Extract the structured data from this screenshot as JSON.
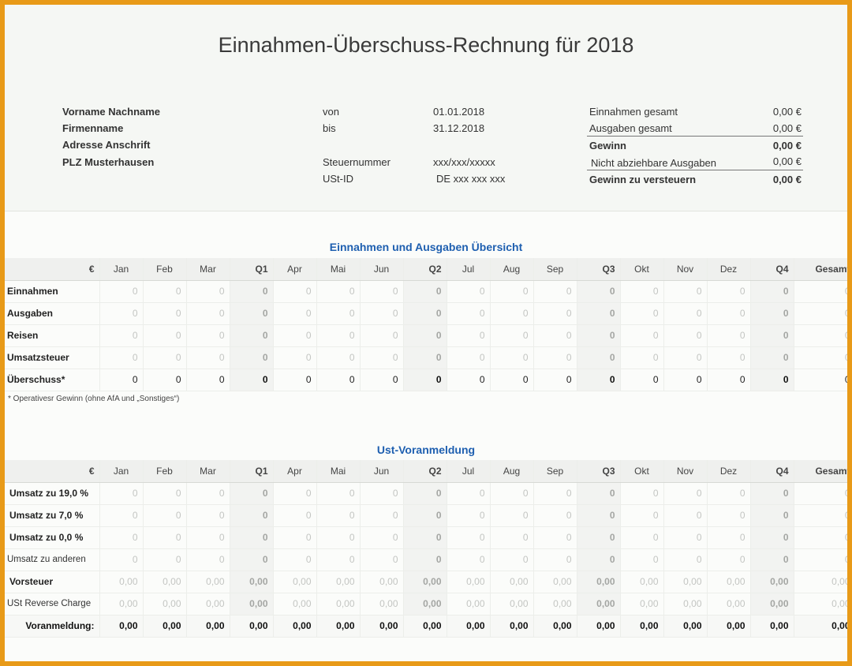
{
  "title": "Einnahmen-Überschuss-Rechnung für 2018",
  "person": {
    "name": "Vorname Nachname",
    "company": "Firmenname",
    "address": "Adresse Anschrift",
    "city": "PLZ Musterhausen"
  },
  "period": {
    "from_label": "von",
    "from_value": "01.01.2018",
    "to_label": "bis",
    "to_value": "31.12.2018",
    "tax_label": "Steuernummer",
    "tax_value": "xxx/xxx/xxxxx",
    "vat_label": "USt-ID",
    "vat_value": "DE xxx xxx xxx"
  },
  "summary": [
    {
      "label": "Einnahmen gesamt",
      "value": "0,00 €",
      "bold": false
    },
    {
      "label": "Ausgaben gesamt",
      "value": "0,00 €",
      "bold": false
    },
    {
      "label": "Gewinn",
      "value": "0,00 €",
      "bold": true
    },
    {
      "label": "Nicht abziehbare Ausgaben",
      "value": "0,00 €",
      "bold": false
    },
    {
      "label": "Gewinn zu versteuern",
      "value": "0,00 €",
      "bold": true
    }
  ],
  "columns": [
    "€",
    "Jan",
    "Feb",
    "Mar",
    "Q1",
    "Apr",
    "Mai",
    "Jun",
    "Q2",
    "Jul",
    "Aug",
    "Sep",
    "Q3",
    "Okt",
    "Nov",
    "Dez",
    "Q4",
    "Gesamt"
  ],
  "overview": {
    "title": "Einnahmen und Ausgaben Übersicht",
    "rows": [
      {
        "label": "Einnahmen",
        "value": "0"
      },
      {
        "label": "Ausgaben",
        "value": "0"
      },
      {
        "label": "Reisen",
        "value": "0"
      },
      {
        "label": "Umsatzsteuer",
        "value": "0"
      },
      {
        "label": "Überschuss*",
        "value": "0"
      }
    ],
    "footnote": "* Operativesr Gewinn (ohne AfA und „Sonstiges“)"
  },
  "ust": {
    "title": "Ust-Voranmeldung",
    "rows": [
      {
        "label": "Umsatz zu  19,0 %",
        "value": "0"
      },
      {
        "label": "Umsatz zu   7,0 %",
        "value": "0"
      },
      {
        "label": "Umsatz zu   0,0 %",
        "value": "0"
      },
      {
        "label": "Umsatz zu anderen",
        "value": "0"
      },
      {
        "label": "Vorsteuer",
        "value": "0,00"
      },
      {
        "label": "USt Reverse Charge",
        "value": "0,00"
      },
      {
        "label": "Voranmeldung:",
        "value": "0,00"
      }
    ]
  }
}
